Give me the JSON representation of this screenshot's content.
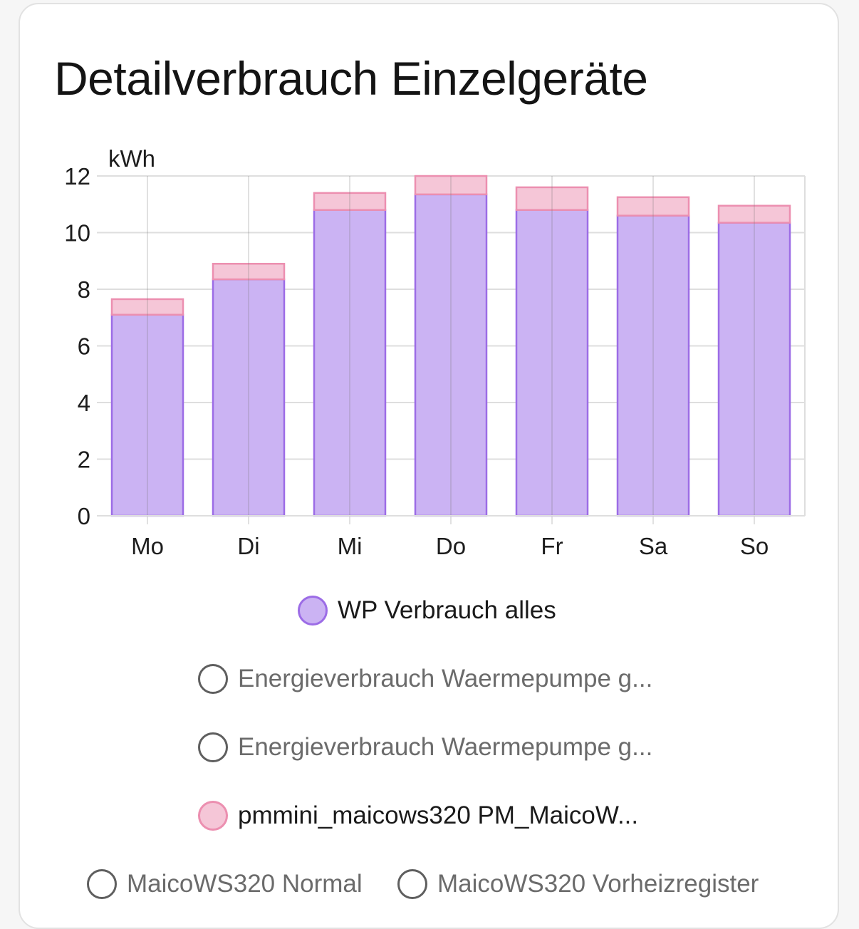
{
  "card": {
    "title": "Detailverbrauch Einzelgeräte"
  },
  "chart_data": {
    "type": "bar",
    "stacked": true,
    "ylabel": "kWh",
    "ylim": [
      0,
      12
    ],
    "yticks": [
      0,
      2,
      4,
      6,
      8,
      10,
      12
    ],
    "grid": true,
    "legend_position": "bottom",
    "categories": [
      "Mo",
      "Di",
      "Mi",
      "Do",
      "Fr",
      "Sa",
      "So"
    ],
    "series": [
      {
        "name": "WP Verbrauch alles",
        "color": "#9c6ce6",
        "fill": "#cbb3f3",
        "visible": true,
        "values": [
          7.1,
          8.35,
          10.8,
          11.35,
          10.8,
          10.6,
          10.35
        ]
      },
      {
        "name": "pmmini_maicows320 PM_MaicoW...",
        "color": "#ec8fb0",
        "fill": "#f5c6d7",
        "visible": true,
        "values": [
          0.55,
          0.55,
          0.6,
          0.65,
          0.8,
          0.65,
          0.6
        ]
      }
    ]
  },
  "legend": {
    "items": [
      {
        "label": "WP Verbrauch alles",
        "active": true,
        "color": "#9c6ce6",
        "fill": "#cbb3f3"
      },
      {
        "label": "Energieverbrauch Waermepumpe g...",
        "active": false
      },
      {
        "label": "Energieverbrauch Waermepumpe g...",
        "active": false
      },
      {
        "label": "pmmini_maicows320 PM_MaicoW...",
        "active": true,
        "color": "#ec8fb0",
        "fill": "#f5c6d7"
      },
      {
        "label": "MaicoWS320 Normal",
        "active": false
      },
      {
        "label": "MaicoWS320 Vorheizregister",
        "active": false
      }
    ]
  }
}
